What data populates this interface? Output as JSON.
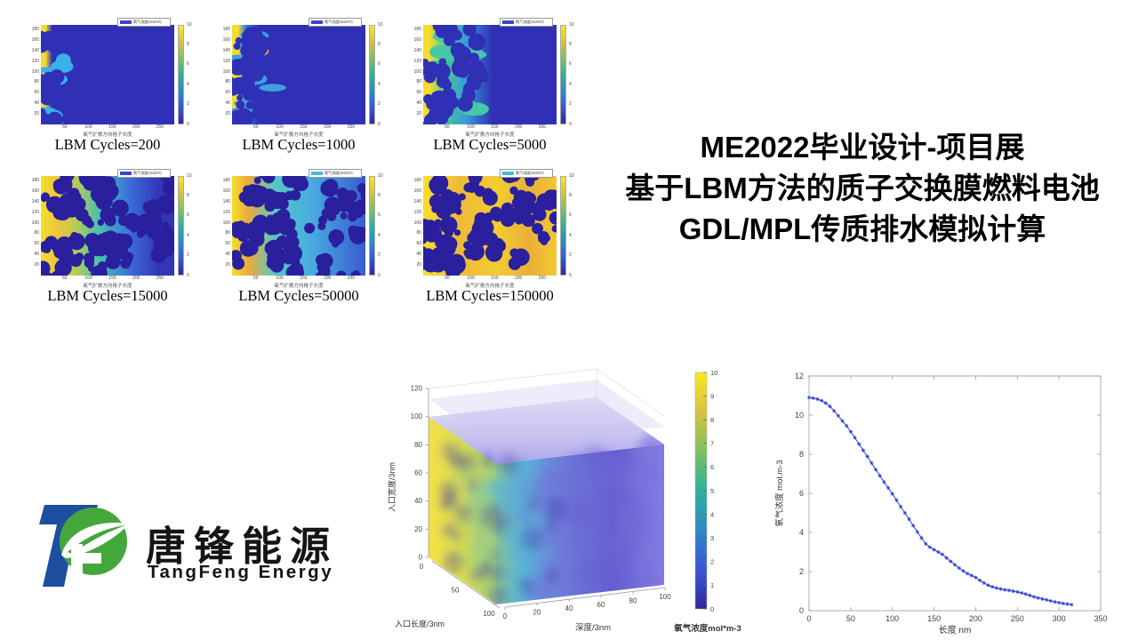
{
  "title_block": {
    "line1": "ME2022毕业设计-项目展",
    "line2": "基于LBM方法的质子交换膜燃料电池",
    "line3": "GDL/MPL传质排水模拟计算"
  },
  "logo": {
    "cn": "唐锋能源",
    "en": "TangFeng Energy",
    "blue": "#1d4e9f",
    "green": "#44a73c"
  },
  "chart_data": [
    {
      "type": "heatmap",
      "xlabel": "氧气扩散方向格子长度",
      "legend_label": "氧气浓度(mol/m³)",
      "x_ticks": [
        50,
        100,
        150,
        200,
        250
      ],
      "y_ticks": [
        20,
        40,
        60,
        80,
        100,
        120,
        140,
        160,
        180
      ],
      "x_range": [
        0,
        280
      ],
      "y_range": [
        0,
        190
      ],
      "colorbar_ticks": [
        0,
        2,
        4,
        6,
        8,
        10
      ],
      "colorbar_colors": [
        "#33269c",
        "#3657d6",
        "#2d8ac5",
        "#30b09c",
        "#7ec05e",
        "#d8c13f",
        "#f9e721"
      ],
      "plots": [
        {
          "caption": "LBM Cycles=200",
          "seed": 7,
          "swatch": "#3a46cc",
          "stops": [
            [
              "#f6dd2b",
              0
            ],
            [
              "#f6dd2b",
              0.035
            ],
            [
              "#2f30b5",
              0.085
            ],
            [
              "#2f30b5",
              1
            ]
          ],
          "fingers": 8,
          "fingerColor": "#38b2e8",
          "fingerXmax": 0.17,
          "pores": 12,
          "poreXmax": 0.12,
          "poreColor": "#2f30b5"
        },
        {
          "caption": "LBM Cycles=1000",
          "seed": 21,
          "swatch": "#3a46cc",
          "stops": [
            [
              "#f6dd2b",
              0
            ],
            [
              "#f6dd2b",
              0.045
            ],
            [
              "#3a7fd2",
              0.1
            ],
            [
              "#2f30b5",
              0.2
            ],
            [
              "#2f30b5",
              1
            ]
          ],
          "fingers": 9,
          "fingerColor": "#3f9fe0",
          "fingerXmax": 0.3,
          "accents": 2,
          "accentColor": "#dfa23c",
          "pores": 16,
          "poreXmax": 0.22,
          "poreColor": "#2f30b5"
        },
        {
          "caption": "LBM Cycles=5000",
          "seed": 33,
          "swatch": "#3a46cc",
          "stops": [
            [
              "#f6dd2b",
              0
            ],
            [
              "#f6dd2b",
              0.05
            ],
            [
              "#49c39b",
              0.17
            ],
            [
              "#3a9bd8",
              0.32
            ],
            [
              "#2f30b5",
              0.52
            ],
            [
              "#2f30b5",
              1
            ]
          ],
          "fingers": 10,
          "fingerColor": "#45c8a8",
          "fingerXmax": 0.4,
          "pores": 22,
          "poreXmax": 0.45,
          "poreColor": "#2f30b5"
        },
        {
          "caption": "LBM Cycles=15000",
          "seed": 44,
          "swatch": "#3a46cc",
          "stops": [
            [
              "#f6dd2b",
              0
            ],
            [
              "#eec63a",
              0.12
            ],
            [
              "#bacc52",
              0.26
            ],
            [
              "#47c0b2",
              0.44
            ],
            [
              "#3b6fd8",
              0.66
            ],
            [
              "#3436b8",
              0.88
            ],
            [
              "#3436b8",
              1
            ]
          ],
          "fingers": 0,
          "pores": 40,
          "poreXmax": 1,
          "poreColor": "#2a1f9d"
        },
        {
          "caption": "LBM Cycles=50000",
          "seed": 55,
          "swatch": "#49b9dc",
          "stops": [
            [
              "#f6dd2b",
              0
            ],
            [
              "#eeab3a",
              0.12
            ],
            [
              "#56c8c4",
              0.32
            ],
            [
              "#48abe0",
              0.6
            ],
            [
              "#3f79d6",
              0.85
            ],
            [
              "#3a5ccc",
              1
            ]
          ],
          "fingers": 0,
          "pores": 42,
          "poreXmax": 1,
          "poreColor": "#2a1f9d"
        },
        {
          "caption": "LBM Cycles=150000",
          "seed": 66,
          "swatch": "#49b9dc",
          "stops": [
            [
              "#f6dd2b",
              0
            ],
            [
              "#efb93a",
              0.28
            ],
            [
              "#f3cc31",
              0.55
            ],
            [
              "#eab038",
              0.8
            ],
            [
              "#f2c833",
              1
            ]
          ],
          "fingers": 0,
          "pores": 44,
          "poreXmax": 1,
          "poreColor": "#2a1f9d"
        }
      ]
    },
    {
      "type": "volume3d",
      "xlabel": "深度/3nm",
      "ylabel": "入口长度/3nm",
      "zlabel": "入口宽度/3nm",
      "x_ticks": [
        0,
        20,
        40,
        60,
        80,
        100
      ],
      "y_ticks": [
        0,
        50,
        100
      ],
      "z_ticks": [
        0,
        20,
        40,
        60,
        80,
        100,
        120
      ],
      "colorbar_label": "氧气浓度mol*m-3",
      "colorbar_ticks": [
        0,
        1,
        2,
        3,
        4,
        5,
        6,
        7,
        8,
        9,
        10
      ],
      "colorbar_colors": [
        "#33269c",
        "#3657d6",
        "#2d8ac5",
        "#30b09c",
        "#7ec05e",
        "#d8c13f",
        "#f9e721"
      ],
      "palette": [
        "#f5e33c",
        "#d8d94f",
        "#8cc98f",
        "#58b5d8",
        "#6f7ad9",
        "#665ecf",
        "#837be2"
      ]
    },
    {
      "type": "scatter",
      "xlabel": "长度 nm",
      "ylabel": "氧气浓度 mol.m-3",
      "xlim": [
        0,
        350
      ],
      "ylim": [
        0,
        12
      ],
      "x_ticks": [
        0,
        50,
        100,
        150,
        200,
        250,
        300,
        350
      ],
      "y_ticks": [
        0,
        2,
        4,
        6,
        8,
        10,
        12
      ],
      "marker_color": "#2236ce",
      "x": [
        0,
        5,
        10,
        15,
        20,
        25,
        30,
        35,
        40,
        45,
        50,
        55,
        60,
        65,
        70,
        75,
        80,
        85,
        90,
        95,
        100,
        105,
        110,
        115,
        120,
        125,
        130,
        135,
        140,
        145,
        150,
        155,
        160,
        165,
        170,
        175,
        180,
        185,
        190,
        195,
        200,
        205,
        210,
        215,
        220,
        225,
        230,
        235,
        240,
        245,
        250,
        255,
        260,
        265,
        270,
        275,
        280,
        285,
        290,
        295,
        300,
        305,
        310,
        315
      ],
      "y": [
        10.9,
        10.87,
        10.82,
        10.74,
        10.62,
        10.45,
        10.22,
        9.97,
        9.7,
        9.45,
        9.15,
        8.85,
        8.52,
        8.2,
        7.88,
        7.55,
        7.22,
        6.9,
        6.58,
        6.28,
        5.98,
        5.65,
        5.32,
        5.0,
        4.68,
        4.35,
        4.03,
        3.72,
        3.42,
        3.25,
        3.12,
        3.0,
        2.88,
        2.7,
        2.52,
        2.35,
        2.18,
        2.03,
        1.9,
        1.8,
        1.7,
        1.55,
        1.42,
        1.3,
        1.22,
        1.16,
        1.11,
        1.07,
        1.04,
        1.0,
        0.96,
        0.91,
        0.85,
        0.78,
        0.71,
        0.65,
        0.6,
        0.55,
        0.5,
        0.45,
        0.41,
        0.37,
        0.34,
        0.31
      ]
    }
  ]
}
